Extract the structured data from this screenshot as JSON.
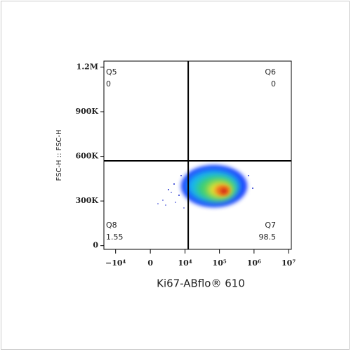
{
  "chart_data": {
    "type": "density-plot",
    "x_label": "Ki67-ABflo® 610",
    "y_label": "FSC-H :: FSC-H",
    "xscale": "biex",
    "xlim": [
      -22000,
      12000000
    ],
    "xticks": [
      {
        "value": -10000,
        "label": "−10⁴"
      },
      0,
      {
        "value": 10000,
        "label": "10⁴"
      },
      {
        "value": 100000,
        "label": "10⁵"
      },
      {
        "value": 1000000,
        "label": "10⁶"
      },
      {
        "value": 10000000,
        "label": "10⁷"
      }
    ],
    "ylim": [
      -25000,
      1240000
    ],
    "yticks": [
      0,
      {
        "value": 300000,
        "label": "300K"
      },
      {
        "value": 600000,
        "label": "600K"
      },
      {
        "value": 900000,
        "label": "900K"
      },
      {
        "value": 1200000,
        "label": "1.2M"
      }
    ],
    "gate_x": 12400,
    "gate_y": 570000,
    "quadrants": [
      {
        "name": "Q5",
        "value": 0,
        "corner": "top-left"
      },
      {
        "name": "Q6",
        "value": 0,
        "corner": "top-right"
      },
      {
        "name": "Q7",
        "value": 98.5,
        "corner": "bottom-right"
      },
      {
        "name": "Q8",
        "value": 1.55,
        "corner": "bottom-left"
      }
    ]
  }
}
